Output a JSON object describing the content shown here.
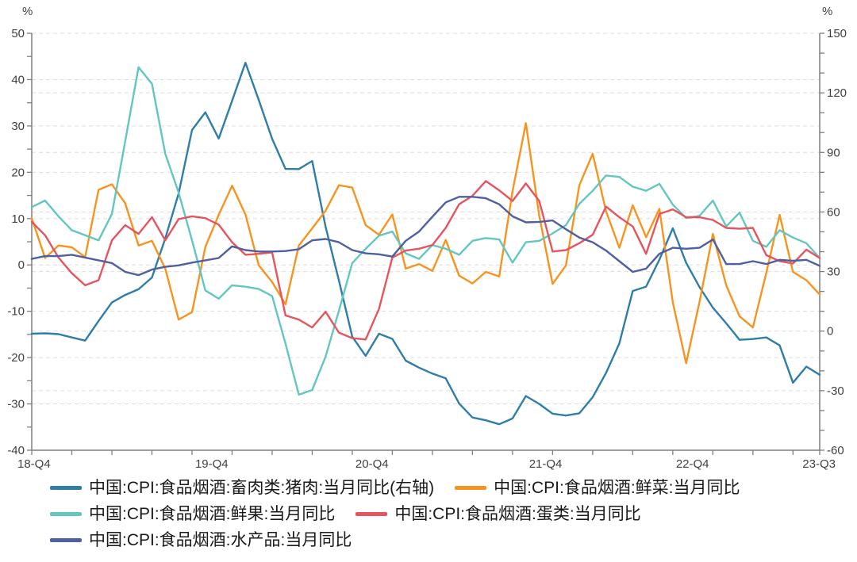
{
  "chart": {
    "left_axis": {
      "unit": "%",
      "min": -40,
      "max": 50,
      "step": 10,
      "minor_step": 5,
      "tick_labels": [
        "50",
        "40",
        "30",
        "20",
        "10",
        "0",
        "-10",
        "-20",
        "-30",
        "-40"
      ]
    },
    "right_axis": {
      "unit": "%",
      "min": -60,
      "max": 150,
      "step": 30,
      "minor_step": 10,
      "tick_labels": [
        "150",
        "120",
        "90",
        "60",
        "30",
        "0",
        "-30",
        "-60"
      ]
    },
    "x_axis": {
      "tick_every_months": 3,
      "labels": [
        "18-Q4",
        "19-Q4",
        "20-Q4",
        "21-Q4",
        "22-Q4",
        "23-Q3"
      ],
      "label_month_index": [
        0,
        13,
        25,
        38,
        49,
        59
      ]
    },
    "colors": {
      "axis": "#7f7f7f",
      "grid": "#dddddd",
      "tick_text": "#404040",
      "legend_text": "#1a1a1a",
      "background": "#ffffff"
    }
  },
  "chart_data": {
    "type": "line",
    "x_unit": "month",
    "x_start": "2018-10",
    "x_end": "2023-09",
    "grid": "dashed",
    "legend_position": "bottom-left",
    "series": [
      {
        "id": "pork",
        "label": "中国:CPI:食品烟酒:畜肉类:猪肉:当月同比(右轴)",
        "color": "#2e7ea8",
        "axis": "right",
        "values": [
          -1.3,
          -1.1,
          -1.5,
          -3.2,
          -4.8,
          5.1,
          14.4,
          18.2,
          21.1,
          27.0,
          46.7,
          69.3,
          101.3,
          110.2,
          97.0,
          116.0,
          135.2,
          116.4,
          96.9,
          81.7,
          81.6,
          85.7,
          52.6,
          25.5,
          -2.8,
          -12.5,
          -1.3,
          -3.9,
          -14.9,
          -18.4,
          -21.4,
          -23.8,
          -36.5,
          -43.5,
          -44.9,
          -46.9,
          -44.0,
          -32.7,
          -36.7,
          -41.6,
          -42.5,
          -41.4,
          -33.3,
          -21.1,
          -6.2,
          20.2,
          22.4,
          36.0,
          51.8,
          34.4,
          22.2,
          11.8,
          3.9,
          -4.4,
          -4.0,
          -3.2,
          -7.2,
          -26.0,
          -17.9,
          -22.0
        ]
      },
      {
        "id": "fresh-vegetables",
        "label": "中国:CPI:食品烟酒:鲜菜:当月同比",
        "color": "#f7941e",
        "axis": "left",
        "values": [
          10.1,
          1.5,
          4.2,
          3.8,
          1.7,
          16.2,
          17.4,
          13.3,
          4.2,
          5.2,
          -0.8,
          -11.8,
          -10.2,
          3.9,
          10.8,
          17.1,
          10.9,
          -0.1,
          -3.7,
          -8.5,
          4.2,
          7.9,
          11.7,
          17.2,
          16.7,
          8.6,
          6.5,
          10.9,
          -0.8,
          0.2,
          -1.3,
          5.4,
          -2.3,
          -4.0,
          -1.5,
          -2.5,
          15.9,
          30.6,
          10.6,
          -4.1,
          -0.1,
          17.2,
          24.0,
          11.6,
          3.7,
          12.9,
          6.0,
          12.1,
          -8.1,
          -21.2,
          -8.0,
          6.7,
          -4.4,
          -11.1,
          -13.5,
          -1.7,
          10.8,
          -1.5,
          -3.3,
          -6.4
        ]
      },
      {
        "id": "fresh-fruit",
        "label": "中国:CPI:食品烟酒:鲜果:当月同比",
        "color": "#63c6c0",
        "axis": "left",
        "values": [
          12.5,
          13.9,
          10.5,
          7.5,
          6.4,
          5.3,
          11.0,
          26.7,
          42.7,
          39.1,
          24.0,
          15.6,
          5.3,
          -5.5,
          -7.3,
          -4.4,
          -4.7,
          -5.2,
          -6.7,
          -17.0,
          -28.0,
          -27.0,
          -19.8,
          -9.9,
          0.4,
          3.5,
          6.3,
          7.2,
          2.5,
          1.3,
          4.3,
          3.5,
          2.2,
          5.2,
          5.8,
          5.5,
          0.5,
          4.9,
          5.2,
          6.8,
          8.6,
          13.2,
          16.0,
          19.3,
          19.0,
          16.9,
          16.0,
          17.5,
          13.0,
          10.1,
          10.6,
          13.9,
          8.3,
          11.3,
          5.2,
          3.9,
          7.5,
          5.9,
          4.7,
          1.5
        ]
      },
      {
        "id": "eggs",
        "label": "中国:CPI:食品烟酒:蛋类:当月同比",
        "color": "#e4555f",
        "axis": "left",
        "values": [
          9.3,
          6.4,
          1.6,
          -1.8,
          -4.4,
          -3.3,
          5.3,
          8.6,
          6.7,
          10.3,
          5.3,
          9.9,
          10.5,
          10.1,
          8.7,
          4.9,
          2.2,
          2.4,
          2.7,
          -10.9,
          -11.8,
          -13.5,
          -10.1,
          -14.6,
          -15.8,
          -16.1,
          -9.5,
          1.6,
          3.1,
          3.5,
          4.3,
          8.0,
          13.1,
          14.9,
          18.1,
          16.1,
          13.8,
          17.6,
          13.8,
          2.9,
          3.2,
          4.7,
          6.5,
          12.6,
          10.3,
          8.3,
          2.4,
          11.0,
          12.0,
          10.3,
          10.3,
          9.7,
          8.0,
          7.8,
          8.0,
          2.1,
          0.8,
          0.3,
          3.3,
          1.5
        ]
      },
      {
        "id": "aquatic-products",
        "label": "中国:CPI:食品烟酒:水产品:当月同比",
        "color": "#4f5f9f",
        "axis": "left",
        "values": [
          1.3,
          1.9,
          1.9,
          2.2,
          1.6,
          1.0,
          0.4,
          -1.5,
          -2.2,
          -1.0,
          -0.4,
          -0.1,
          0.5,
          1.0,
          1.5,
          4.0,
          3.2,
          2.9,
          2.9,
          3.0,
          3.4,
          5.3,
          5.6,
          4.9,
          3.2,
          2.5,
          2.3,
          1.8,
          5.2,
          7.2,
          10.4,
          13.5,
          14.7,
          14.7,
          14.4,
          13.1,
          10.5,
          9.2,
          9.3,
          9.6,
          7.7,
          5.9,
          4.9,
          3.1,
          0.8,
          -1.5,
          -0.8,
          2.4,
          3.7,
          3.5,
          3.7,
          5.5,
          0.2,
          0.2,
          0.8,
          0.2,
          1.1,
          0.9,
          1.1,
          -0.2
        ]
      }
    ]
  }
}
